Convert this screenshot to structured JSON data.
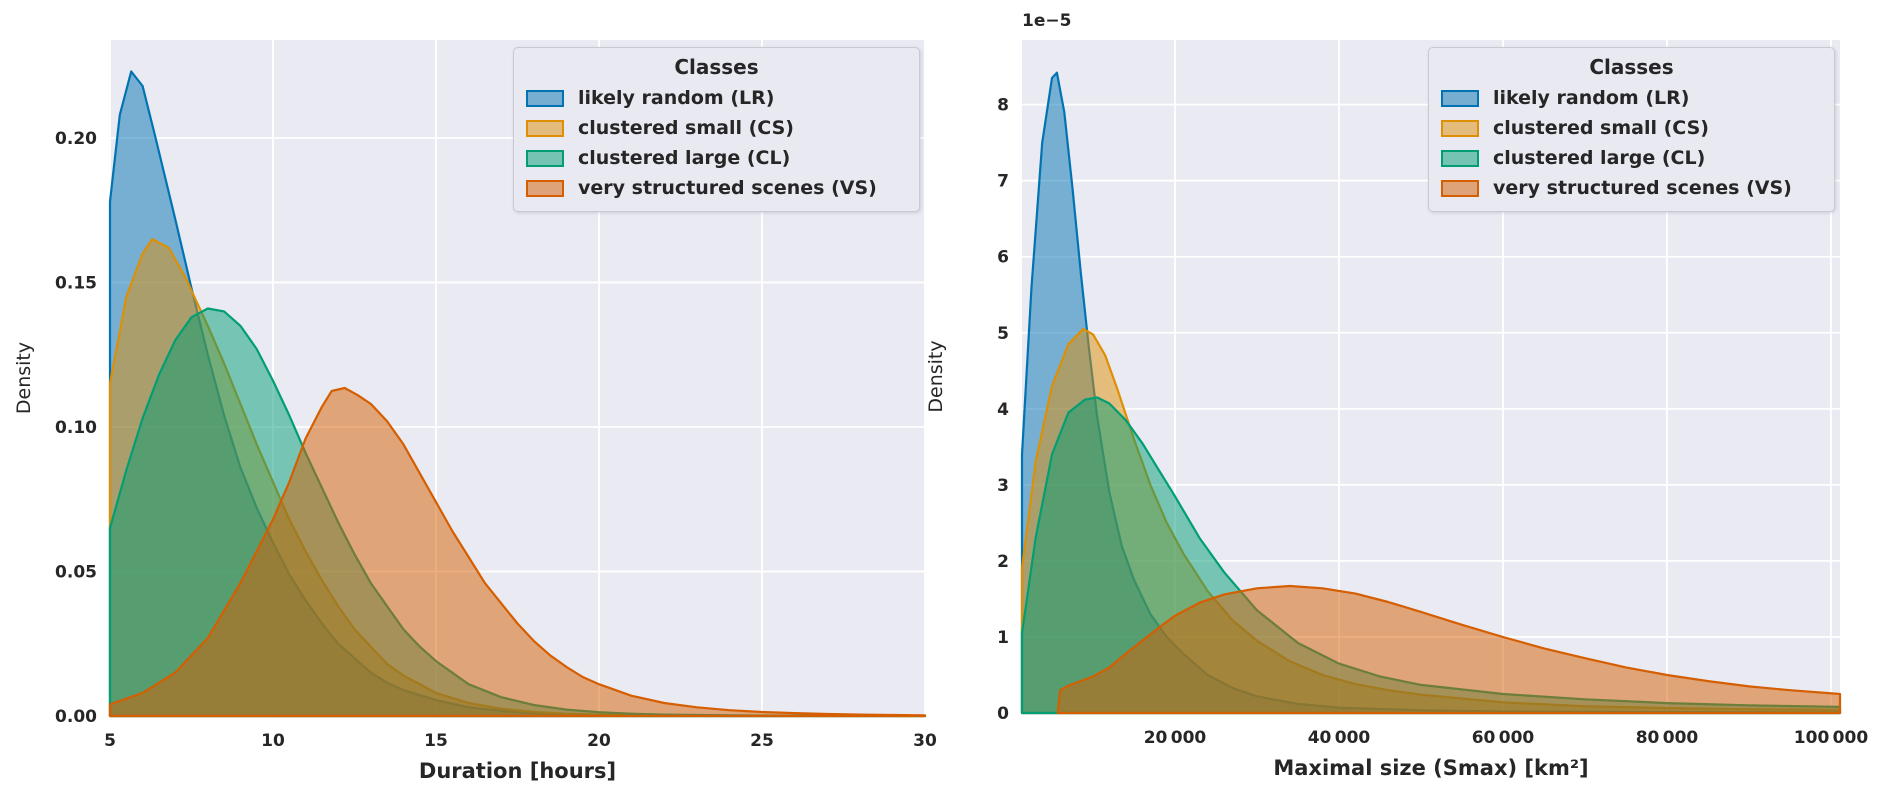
{
  "figure": {
    "background": "#ffffff",
    "axes_background": "#EAEAF2",
    "grid_color": "#ffffff",
    "text_color": "#262626"
  },
  "legend": {
    "title": "Classes",
    "items": [
      {
        "id": "lr",
        "label": "likely random (LR)",
        "color": "#0173B2"
      },
      {
        "id": "cs",
        "label": "clustered small (CS)",
        "color": "#DE8F05"
      },
      {
        "id": "cl",
        "label": "clustered large (CL)",
        "color": "#029E73"
      },
      {
        "id": "vs",
        "label": "very structured scenes (VS)",
        "color": "#D55E00"
      }
    ]
  },
  "chart_data": [
    {
      "type": "area",
      "subtype": "kde-density",
      "title": "",
      "xlabel": "Duration [hours]",
      "ylabel": "Density",
      "xlim": [
        5,
        30
      ],
      "ylim": [
        0,
        0.2339
      ],
      "grid": true,
      "legend_position": "upper right",
      "xticks": [
        {
          "v": 5,
          "label": "5"
        },
        {
          "v": 10,
          "label": "10"
        },
        {
          "v": 15,
          "label": "15"
        },
        {
          "v": 20,
          "label": "20"
        },
        {
          "v": 25,
          "label": "25"
        },
        {
          "v": 30,
          "label": "30"
        }
      ],
      "yticks": [
        {
          "v": 0,
          "label": "0.00"
        },
        {
          "v": 0.05,
          "label": "0.05"
        },
        {
          "v": 0.1,
          "label": "0.10"
        },
        {
          "v": 0.15,
          "label": "0.15"
        },
        {
          "v": 0.2,
          "label": "0.20"
        }
      ],
      "series": [
        {
          "id": "lr",
          "name": "likely random (LR)",
          "color": "#0173B2",
          "points": [
            [
              5,
              0.178
            ],
            [
              5.3,
              0.208
            ],
            [
              5.65,
              0.223
            ],
            [
              6,
              0.218
            ],
            [
              6.4,
              0.2
            ],
            [
              7,
              0.172
            ],
            [
              7.5,
              0.148
            ],
            [
              8,
              0.125
            ],
            [
              8.5,
              0.104
            ],
            [
              9,
              0.086
            ],
            [
              9.5,
              0.072
            ],
            [
              10,
              0.06
            ],
            [
              10.5,
              0.049
            ],
            [
              11,
              0.04
            ],
            [
              11.5,
              0.032
            ],
            [
              12,
              0.025
            ],
            [
              12.5,
              0.02
            ],
            [
              13,
              0.015
            ],
            [
              13.5,
              0.0115
            ],
            [
              14,
              0.009
            ],
            [
              15,
              0.0055
            ],
            [
              16,
              0.003
            ],
            [
              17,
              0.0018
            ],
            [
              18,
              0.001
            ],
            [
              19,
              0.0006
            ],
            [
              20,
              0.0004
            ],
            [
              22,
              0.0002
            ],
            [
              25,
              0.0001
            ],
            [
              30,
              5e-05
            ]
          ]
        },
        {
          "id": "cs",
          "name": "clustered small (CS)",
          "color": "#DE8F05",
          "points": [
            [
              5,
              0.115
            ],
            [
              5.5,
              0.145
            ],
            [
              6,
              0.16
            ],
            [
              6.3,
              0.165
            ],
            [
              6.8,
              0.162
            ],
            [
              7.3,
              0.152
            ],
            [
              8,
              0.135
            ],
            [
              8.5,
              0.122
            ],
            [
              9,
              0.108
            ],
            [
              9.5,
              0.094
            ],
            [
              10,
              0.081
            ],
            [
              10.5,
              0.068
            ],
            [
              11,
              0.057
            ],
            [
              11.5,
              0.047
            ],
            [
              12,
              0.038
            ],
            [
              12.5,
              0.03
            ],
            [
              13,
              0.024
            ],
            [
              13.5,
              0.018
            ],
            [
              14,
              0.014
            ],
            [
              15,
              0.008
            ],
            [
              16,
              0.0045
            ],
            [
              17,
              0.0025
            ],
            [
              18,
              0.0014
            ],
            [
              19,
              0.0008
            ],
            [
              20,
              0.0005
            ],
            [
              22,
              0.0002
            ],
            [
              25,
              0.0001
            ],
            [
              30,
              5e-05
            ]
          ]
        },
        {
          "id": "cl",
          "name": "clustered large (CL)",
          "color": "#029E73",
          "points": [
            [
              5,
              0.065
            ],
            [
              5.5,
              0.085
            ],
            [
              6,
              0.103
            ],
            [
              6.5,
              0.118
            ],
            [
              7,
              0.13
            ],
            [
              7.5,
              0.138
            ],
            [
              8,
              0.141
            ],
            [
              8.5,
              0.14
            ],
            [
              9,
              0.135
            ],
            [
              9.5,
              0.127
            ],
            [
              10,
              0.116
            ],
            [
              10.5,
              0.104
            ],
            [
              11,
              0.091
            ],
            [
              11.5,
              0.079
            ],
            [
              12,
              0.067
            ],
            [
              12.5,
              0.056
            ],
            [
              13,
              0.046
            ],
            [
              13.5,
              0.038
            ],
            [
              14,
              0.03
            ],
            [
              14.5,
              0.024
            ],
            [
              15,
              0.019
            ],
            [
              16,
              0.011
            ],
            [
              17,
              0.0065
            ],
            [
              18,
              0.0038
            ],
            [
              19,
              0.0022
            ],
            [
              20,
              0.0013
            ],
            [
              21,
              0.0008
            ],
            [
              22,
              0.0005
            ],
            [
              24,
              0.0002
            ],
            [
              26,
              0.0001
            ],
            [
              30,
              5e-05
            ]
          ]
        },
        {
          "id": "vs",
          "name": "very structured scenes (VS)",
          "color": "#D55E00",
          "points": [
            [
              5,
              0.004
            ],
            [
              6,
              0.008
            ],
            [
              7,
              0.015
            ],
            [
              8,
              0.027
            ],
            [
              9,
              0.046
            ],
            [
              9.5,
              0.057
            ],
            [
              10,
              0.068
            ],
            [
              10.5,
              0.081
            ],
            [
              11,
              0.096
            ],
            [
              11.5,
              0.107
            ],
            [
              11.8,
              0.1125
            ],
            [
              12.2,
              0.1135
            ],
            [
              12.6,
              0.111
            ],
            [
              13,
              0.108
            ],
            [
              13.5,
              0.102
            ],
            [
              14,
              0.094
            ],
            [
              14.5,
              0.084
            ],
            [
              15,
              0.074
            ],
            [
              15.5,
              0.064
            ],
            [
              16,
              0.055
            ],
            [
              16.5,
              0.046
            ],
            [
              17,
              0.039
            ],
            [
              17.5,
              0.032
            ],
            [
              18,
              0.026
            ],
            [
              18.5,
              0.021
            ],
            [
              19,
              0.017
            ],
            [
              19.5,
              0.0135
            ],
            [
              20,
              0.011
            ],
            [
              21,
              0.007
            ],
            [
              22,
              0.0045
            ],
            [
              23,
              0.003
            ],
            [
              24,
              0.002
            ],
            [
              25,
              0.0014
            ],
            [
              26,
              0.001
            ],
            [
              27,
              0.0007
            ],
            [
              28,
              0.0005
            ],
            [
              29,
              0.00035
            ],
            [
              30,
              0.00025
            ]
          ]
        }
      ]
    },
    {
      "type": "area",
      "subtype": "kde-density",
      "title": "",
      "xlabel": "Maximal size (Smax) [km²]",
      "ylabel": "Density",
      "offset_text": "1e−5",
      "value_multiplier": "1e-5",
      "xlim": [
        1340,
        101100
      ],
      "ylim": [
        0,
        8.85
      ],
      "grid": true,
      "legend_position": "upper right",
      "xticks": [
        {
          "v": 20000,
          "label": "20 000"
        },
        {
          "v": 40000,
          "label": "40 000"
        },
        {
          "v": 60000,
          "label": "60 000"
        },
        {
          "v": 80000,
          "label": "80 000"
        },
        {
          "v": 100000,
          "label": "100 000"
        }
      ],
      "yticks": [
        {
          "v": 0,
          "label": "0"
        },
        {
          "v": 1,
          "label": "1"
        },
        {
          "v": 2,
          "label": "2"
        },
        {
          "v": 3,
          "label": "3"
        },
        {
          "v": 4,
          "label": "4"
        },
        {
          "v": 5,
          "label": "5"
        },
        {
          "v": 6,
          "label": "6"
        },
        {
          "v": 7,
          "label": "7"
        },
        {
          "v": 8,
          "label": "8"
        }
      ],
      "series": [
        {
          "id": "lr",
          "name": "likely random (LR)",
          "color": "#0173B2",
          "points": [
            [
              1340,
              3.4
            ],
            [
              2500,
              5.6
            ],
            [
              3800,
              7.5
            ],
            [
              5000,
              8.35
            ],
            [
              5600,
              8.42
            ],
            [
              6500,
              7.9
            ],
            [
              7500,
              6.9
            ],
            [
              8500,
              5.8
            ],
            [
              9500,
              4.8
            ],
            [
              10500,
              3.9
            ],
            [
              12000,
              2.9
            ],
            [
              13500,
              2.2
            ],
            [
              15000,
              1.75
            ],
            [
              17000,
              1.3
            ],
            [
              19000,
              1.0
            ],
            [
              21000,
              0.78
            ],
            [
              24000,
              0.5
            ],
            [
              27000,
              0.33
            ],
            [
              30000,
              0.22
            ],
            [
              35000,
              0.12
            ],
            [
              40000,
              0.07
            ],
            [
              50000,
              0.035
            ],
            [
              60000,
              0.02
            ],
            [
              80000,
              0.012
            ],
            [
              101100,
              0.008
            ]
          ]
        },
        {
          "id": "cs",
          "name": "clustered small (CS)",
          "color": "#DE8F05",
          "points": [
            [
              1340,
              1.9
            ],
            [
              3000,
              3.3
            ],
            [
              5000,
              4.3
            ],
            [
              7000,
              4.85
            ],
            [
              8800,
              5.05
            ],
            [
              10000,
              4.98
            ],
            [
              11500,
              4.7
            ],
            [
              13000,
              4.25
            ],
            [
              15000,
              3.6
            ],
            [
              17000,
              3.0
            ],
            [
              19000,
              2.5
            ],
            [
              21000,
              2.1
            ],
            [
              24000,
              1.6
            ],
            [
              27000,
              1.22
            ],
            [
              30000,
              0.95
            ],
            [
              34000,
              0.68
            ],
            [
              38000,
              0.5
            ],
            [
              42000,
              0.38
            ],
            [
              46000,
              0.3
            ],
            [
              50000,
              0.24
            ],
            [
              60000,
              0.14
            ],
            [
              70000,
              0.09
            ],
            [
              80000,
              0.065
            ],
            [
              90000,
              0.05
            ],
            [
              101100,
              0.04
            ]
          ]
        },
        {
          "id": "cl",
          "name": "clustered large (CL)",
          "color": "#029E73",
          "points": [
            [
              1340,
              1.05
            ],
            [
              3000,
              2.3
            ],
            [
              5000,
              3.4
            ],
            [
              7000,
              3.95
            ],
            [
              9000,
              4.12
            ],
            [
              10500,
              4.15
            ],
            [
              12000,
              4.07
            ],
            [
              14000,
              3.85
            ],
            [
              16000,
              3.55
            ],
            [
              18000,
              3.2
            ],
            [
              20000,
              2.85
            ],
            [
              23000,
              2.3
            ],
            [
              26000,
              1.85
            ],
            [
              30000,
              1.35
            ],
            [
              35000,
              0.92
            ],
            [
              40000,
              0.65
            ],
            [
              45000,
              0.48
            ],
            [
              50000,
              0.37
            ],
            [
              60000,
              0.25
            ],
            [
              70000,
              0.18
            ],
            [
              80000,
              0.13
            ],
            [
              90000,
              0.1
            ],
            [
              101100,
              0.08
            ]
          ]
        },
        {
          "id": "vs",
          "name": "very structured scenes (VS)",
          "color": "#D55E00",
          "points": [
            [
              5700,
              0.02
            ],
            [
              6000,
              0.3
            ],
            [
              7000,
              0.36
            ],
            [
              8000,
              0.4
            ],
            [
              10000,
              0.48
            ],
            [
              12000,
              0.6
            ],
            [
              14000,
              0.78
            ],
            [
              16000,
              0.95
            ],
            [
              18000,
              1.12
            ],
            [
              20000,
              1.28
            ],
            [
              23000,
              1.45
            ],
            [
              26000,
              1.56
            ],
            [
              30000,
              1.64
            ],
            [
              34000,
              1.67
            ],
            [
              38000,
              1.64
            ],
            [
              42000,
              1.57
            ],
            [
              46000,
              1.46
            ],
            [
              50000,
              1.33
            ],
            [
              55000,
              1.16
            ],
            [
              60000,
              1.0
            ],
            [
              65000,
              0.85
            ],
            [
              70000,
              0.72
            ],
            [
              75000,
              0.6
            ],
            [
              80000,
              0.5
            ],
            [
              85000,
              0.42
            ],
            [
              90000,
              0.35
            ],
            [
              95000,
              0.3
            ],
            [
              101100,
              0.25
            ]
          ]
        }
      ]
    }
  ]
}
